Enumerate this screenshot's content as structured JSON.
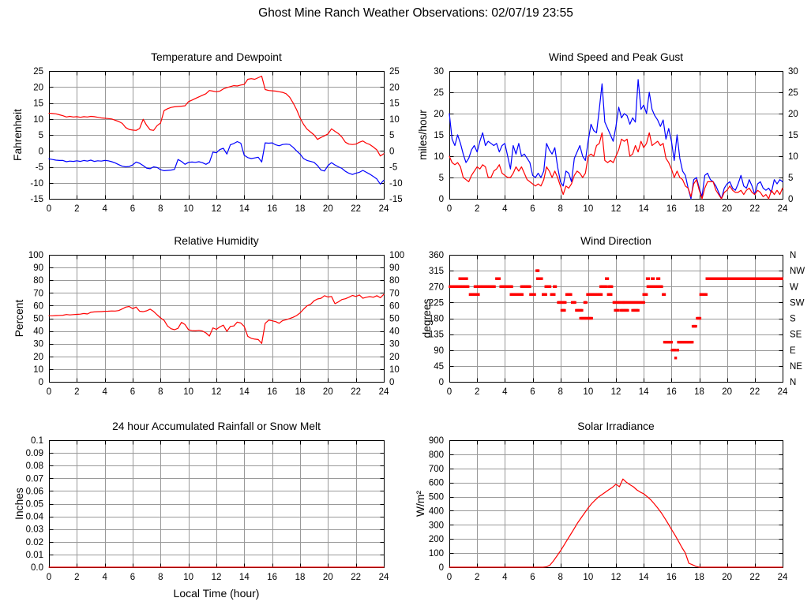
{
  "page_title": "Ghost Mine Ranch Weather Observations: 02/07/19 23:55",
  "colors": {
    "red": "#ff0000",
    "blue": "#0000ff",
    "grid": "#999999",
    "border": "#000000",
    "background": "#ffffff"
  },
  "chart_data": [
    {
      "id": "temperature_dewpoint",
      "type": "line",
      "title": "Temperature and Dewpoint",
      "xlabel": "",
      "ylabel": "Fahrenheit",
      "xlim": [
        0,
        24
      ],
      "xticks_every": 2,
      "ylim": [
        -15,
        25
      ],
      "yticks_every": 5,
      "right_tick_labels": "mirror",
      "grid": true,
      "legend_position": "none",
      "series": [
        {
          "name": "temperature",
          "color": "#ff0000",
          "x0": 0,
          "dx": 0.25,
          "values": [
            11.8,
            11.7,
            11.6,
            11.3,
            11.0,
            10.6,
            10.8,
            10.6,
            10.7,
            10.5,
            10.7,
            10.6,
            10.8,
            10.7,
            10.5,
            10.3,
            10.2,
            10.1,
            10.0,
            9.6,
            9.2,
            8.6,
            7.3,
            6.7,
            6.5,
            6.4,
            7.0,
            9.9,
            8.0,
            6.6,
            6.4,
            7.9,
            8.7,
            12.6,
            13.2,
            13.6,
            13.8,
            13.9,
            14.0,
            14.1,
            15.4,
            15.9,
            16.4,
            16.9,
            17.4,
            17.9,
            18.9,
            18.7,
            18.5,
            18.7,
            19.4,
            19.8,
            20.1,
            20.4,
            20.3,
            20.6,
            20.8,
            22.4,
            22.6,
            22.4,
            22.9,
            23.4,
            19.2,
            18.9,
            18.8,
            18.7,
            18.5,
            18.3,
            17.9,
            16.8,
            15.0,
            12.9,
            10.3,
            8.3,
            6.8,
            5.9,
            5.0,
            3.6,
            4.2,
            4.7,
            5.3,
            6.9,
            6.1,
            5.4,
            4.3,
            2.7,
            2.1,
            2.0,
            2.1,
            2.7,
            3.1,
            2.4,
            2.0,
            1.2,
            0.3,
            -1.6,
            -0.9
          ]
        },
        {
          "name": "dewpoint",
          "color": "#0000ff",
          "x0": 0,
          "dx": 0.25,
          "values": [
            -2.5,
            -2.7,
            -2.9,
            -3.0,
            -3.0,
            -3.4,
            -3.2,
            -3.3,
            -3.1,
            -3.3,
            -3.0,
            -3.2,
            -2.9,
            -3.3,
            -3.1,
            -3.2,
            -3.0,
            -3.1,
            -3.4,
            -3.8,
            -4.3,
            -4.8,
            -5.0,
            -4.9,
            -4.4,
            -3.5,
            -3.9,
            -4.6,
            -5.4,
            -5.6,
            -5.0,
            -5.2,
            -5.9,
            -6.2,
            -6.1,
            -6.0,
            -5.8,
            -2.7,
            -3.3,
            -4.2,
            -3.6,
            -3.5,
            -3.6,
            -3.4,
            -3.7,
            -4.2,
            -3.6,
            -0.4,
            -0.6,
            0.4,
            0.8,
            -1.0,
            1.9,
            2.3,
            2.9,
            2.4,
            -1.4,
            -2.1,
            -2.4,
            -2.2,
            -2.0,
            -3.5,
            2.5,
            2.4,
            2.5,
            1.9,
            1.6,
            2.0,
            2.1,
            2.0,
            1.1,
            0.0,
            -1.0,
            -2.4,
            -3.0,
            -3.3,
            -3.6,
            -4.6,
            -6.0,
            -6.3,
            -4.6,
            -3.7,
            -4.4,
            -5.0,
            -5.5,
            -6.4,
            -7.0,
            -7.4,
            -7.0,
            -6.7,
            -6.1,
            -6.7,
            -7.3,
            -8.0,
            -8.8,
            -10.4,
            -9.2
          ]
        }
      ]
    },
    {
      "id": "wind_speed_gust",
      "type": "line",
      "title": "Wind Speed and Peak Gust",
      "xlabel": "",
      "ylabel": "miles/hour",
      "xlim": [
        0,
        24
      ],
      "xticks_every": 2,
      "ylim": [
        0,
        30
      ],
      "yticks_every": 5,
      "right_tick_labels": "mirror",
      "grid": true,
      "legend_position": "none",
      "series": [
        {
          "name": "peak_gust",
          "color": "#0000ff",
          "x0": 0,
          "dx": 0.2,
          "values": [
            20,
            14,
            12.5,
            15,
            13,
            10.5,
            8.5,
            9.5,
            11.5,
            12.5,
            11,
            13.5,
            15.5,
            12.5,
            13.5,
            13,
            12.5,
            13,
            11,
            12.5,
            13,
            10,
            7,
            12.5,
            10.5,
            13,
            10,
            10.5,
            9.5,
            8.5,
            5.5,
            5,
            6,
            5,
            6.5,
            13,
            11.5,
            10.5,
            12,
            7.5,
            4,
            3,
            6.5,
            6,
            4,
            9.5,
            11,
            12.5,
            10,
            9,
            13.5,
            17.5,
            16,
            15.5,
            21,
            27,
            18,
            16.5,
            15,
            13.5,
            17,
            21.5,
            19,
            20,
            19.5,
            17.5,
            19,
            18,
            28,
            21,
            22,
            20,
            25,
            21,
            19.5,
            18.5,
            17,
            18.5,
            14,
            16.5,
            13.5,
            9,
            15,
            9.5,
            6.5,
            5.5,
            2.5,
            0,
            4.5,
            5,
            2.5,
            0.5,
            5.5,
            6,
            4.5,
            4,
            3,
            1.5,
            0,
            2.5,
            3.5,
            4,
            2.5,
            2,
            3.5,
            5.5,
            3,
            2.5,
            4.5,
            3,
            1,
            3.5,
            4,
            2.5,
            2,
            2.5,
            1.5,
            4.5,
            3.5,
            4.5,
            4
          ]
        },
        {
          "name": "wind_speed",
          "color": "#ff0000",
          "x0": 0,
          "dx": 0.2,
          "values": [
            10,
            8.5,
            8,
            8.5,
            7.5,
            5,
            4.5,
            4,
            5.5,
            6.5,
            7.5,
            7,
            8,
            7.5,
            5,
            5,
            6.5,
            7,
            8,
            6,
            5.5,
            5,
            5,
            6,
            7.5,
            6.5,
            7.5,
            6,
            4.5,
            4,
            3.5,
            3,
            3.5,
            3,
            4.5,
            7.5,
            6.5,
            5,
            6.5,
            5,
            3,
            1,
            3,
            2.5,
            3.5,
            5.5,
            6.5,
            6,
            5,
            6,
            10,
            10.5,
            10,
            12.5,
            13,
            15.5,
            9,
            8.5,
            9,
            8.5,
            10,
            11.5,
            14,
            13.5,
            14,
            10,
            10.5,
            12.5,
            11,
            13.5,
            12,
            13,
            15.5,
            12.5,
            13,
            13.5,
            12.5,
            13,
            9.5,
            8.5,
            7,
            5,
            6.5,
            5,
            4.5,
            3,
            2.5,
            0.5,
            3.5,
            4.5,
            2,
            0,
            2.5,
            4,
            4,
            4,
            2,
            1,
            0,
            1.5,
            2,
            3,
            2,
            1.5,
            1.5,
            2,
            1,
            2,
            2.5,
            1.5,
            1,
            2,
            1.5,
            0.5,
            1,
            0,
            2,
            1,
            2,
            1,
            2.5
          ]
        }
      ]
    },
    {
      "id": "relative_humidity",
      "type": "line",
      "title": "Relative Humidity",
      "xlabel": "",
      "ylabel": "Percent",
      "xlim": [
        0,
        24
      ],
      "xticks_every": 2,
      "ylim": [
        0,
        100
      ],
      "yticks_every": 10,
      "right_tick_labels": "mirror",
      "grid": true,
      "legend_position": "none",
      "series": [
        {
          "name": "relative_humidity",
          "color": "#ff0000",
          "x0": 0,
          "dx": 0.25,
          "values": [
            52.0,
            52.0,
            52.2,
            52.3,
            52.4,
            53.0,
            52.7,
            52.9,
            53.1,
            53.3,
            53.8,
            53.4,
            54.7,
            55.0,
            55.2,
            55.3,
            55.5,
            55.6,
            55.8,
            55.7,
            56.1,
            57.4,
            58.8,
            59.3,
            57.6,
            58.9,
            55.6,
            55.2,
            55.9,
            57.2,
            55.4,
            52.8,
            50.3,
            48.4,
            43.9,
            41.8,
            41.0,
            42.1,
            46.8,
            45.1,
            41.0,
            40.3,
            40.1,
            40.5,
            40.0,
            38.5,
            36.0,
            42.4,
            41.3,
            43.2,
            44.6,
            39.7,
            43.6,
            44.0,
            47.0,
            46.3,
            43.6,
            35.8,
            34.2,
            33.6,
            33.3,
            30.2,
            46.0,
            48.6,
            48.0,
            47.4,
            46.1,
            48.2,
            48.9,
            49.8,
            50.8,
            52.2,
            54.2,
            57.2,
            59.8,
            61.0,
            63.8,
            65.2,
            65.8,
            67.8,
            66.8,
            67.2,
            61.5,
            63.0,
            64.8,
            65.4,
            66.6,
            68.0,
            67.2,
            68.4,
            65.8,
            66.6,
            67.1,
            66.6,
            67.8,
            66.2,
            68.8
          ]
        }
      ]
    },
    {
      "id": "wind_direction",
      "type": "scatter",
      "title": "Wind Direction",
      "xlabel": "",
      "ylabel": "degrees",
      "xlim": [
        0,
        24
      ],
      "xticks_every": 2,
      "ylim": [
        0,
        360
      ],
      "yticks_every": 45,
      "right_tick_labels": [
        "N",
        "NW",
        "W",
        "SW",
        "S",
        "SE",
        "E",
        "NE",
        "N"
      ],
      "grid": true,
      "legend_position": "none",
      "point_color": "#ff0000",
      "point_size": 3.4,
      "dot_spacing_hours": 0.1,
      "segments": [
        [
          270,
          0.05,
          1.4
        ],
        [
          292.5,
          0.75,
          1.3
        ],
        [
          247.5,
          1.5,
          2.15
        ],
        [
          270,
          1.85,
          3.3
        ],
        [
          292.5,
          3.4,
          3.65
        ],
        [
          270,
          3.7,
          4.5
        ],
        [
          247.5,
          4.45,
          5.25
        ],
        [
          270,
          5.2,
          5.85
        ],
        [
          247.5,
          5.85,
          6.2
        ],
        [
          315,
          6.3,
          6.4
        ],
        [
          292.5,
          6.35,
          6.65
        ],
        [
          247.5,
          6.75,
          6.95
        ],
        [
          270,
          6.95,
          7.3
        ],
        [
          247.5,
          7.35,
          7.55
        ],
        [
          270,
          7.55,
          7.7
        ],
        [
          225,
          7.85,
          8.4
        ],
        [
          202.5,
          8.1,
          8.3
        ],
        [
          247.5,
          8.45,
          8.8
        ],
        [
          225,
          8.85,
          9.1
        ],
        [
          202.5,
          9.15,
          9.6
        ],
        [
          180,
          9.45,
          10.25
        ],
        [
          225,
          9.75,
          9.85
        ],
        [
          247.5,
          9.95,
          11.0
        ],
        [
          270,
          10.9,
          11.35
        ],
        [
          292.5,
          11.3,
          11.4
        ],
        [
          247.5,
          11.45,
          11.65
        ],
        [
          270,
          11.5,
          11.7
        ],
        [
          225,
          11.85,
          12.55
        ],
        [
          202.5,
          11.95,
          12.15
        ],
        [
          202.5,
          12.35,
          12.85
        ],
        [
          225,
          12.6,
          13.05
        ],
        [
          202.5,
          13.2,
          13.6
        ],
        [
          225,
          13.1,
          14.0
        ],
        [
          247.5,
          14.0,
          14.2
        ],
        [
          292.5,
          14.25,
          14.35
        ],
        [
          270,
          14.3,
          15.35
        ],
        [
          292.5,
          14.6,
          14.7
        ],
        [
          292.5,
          15.0,
          15.1
        ],
        [
          247.5,
          15.4,
          15.5
        ],
        [
          112.5,
          15.5,
          16.0
        ],
        [
          90,
          16.05,
          16.3
        ],
        [
          67.5,
          16.3,
          16.35
        ],
        [
          90,
          16.45,
          16.5
        ],
        [
          112.5,
          16.5,
          17.5
        ],
        [
          157.5,
          17.55,
          17.8
        ],
        [
          180,
          17.85,
          18.1
        ],
        [
          247.5,
          18.1,
          18.55
        ],
        [
          292.5,
          18.55,
          24.0
        ]
      ]
    },
    {
      "id": "rainfall",
      "type": "line",
      "title": "24 hour Accumulated Rainfall or Snow Melt",
      "xlabel": "Local Time (hour)",
      "ylabel": "Inches",
      "xlim": [
        0,
        24
      ],
      "xticks_every": 2,
      "ylim": [
        0,
        0.1
      ],
      "ytick_labels": [
        "0.0",
        "0.01",
        "0.02",
        "0.03",
        "0.04",
        "0.05",
        "0.06",
        "0.07",
        "0.08",
        "0.09",
        "0.1"
      ],
      "right_tick_labels": null,
      "grid": true,
      "legend_position": "none",
      "series": [
        {
          "name": "accumulated_rainfall",
          "color": "#ff0000",
          "x0": 0,
          "dx": 24,
          "values": [
            0,
            0
          ]
        }
      ]
    },
    {
      "id": "solar_irradiance",
      "type": "line",
      "title": "Solar Irradiance",
      "xlabel": "",
      "ylabel": "W/m²",
      "xlim": [
        0,
        24
      ],
      "xticks_every": 2,
      "ylim": [
        0,
        900
      ],
      "yticks_every": 100,
      "right_tick_labels": null,
      "grid": true,
      "legend_position": "none",
      "series": [
        {
          "name": "solar_irradiance",
          "color": "#ff0000",
          "x0": 0,
          "dx": 0.25,
          "values": [
            0,
            0,
            0,
            0,
            0,
            0,
            0,
            0,
            0,
            0,
            0,
            0,
            0,
            0,
            0,
            0,
            0,
            0,
            0,
            0,
            0,
            0,
            0,
            0,
            0,
            0,
            0,
            0,
            3,
            15,
            45,
            80,
            115,
            155,
            195,
            235,
            275,
            315,
            350,
            385,
            420,
            450,
            475,
            498,
            515,
            532,
            550,
            566,
            588,
            570,
            625,
            602,
            585,
            570,
            548,
            532,
            520,
            500,
            478,
            450,
            420,
            388,
            350,
            310,
            268,
            228,
            185,
            140,
            100,
            28,
            18,
            6,
            0,
            0,
            0,
            0,
            0,
            0,
            0,
            0,
            0,
            0,
            0,
            0,
            0,
            0,
            0,
            0,
            0,
            0,
            0,
            0,
            0,
            0,
            0,
            0,
            0
          ]
        }
      ]
    }
  ]
}
